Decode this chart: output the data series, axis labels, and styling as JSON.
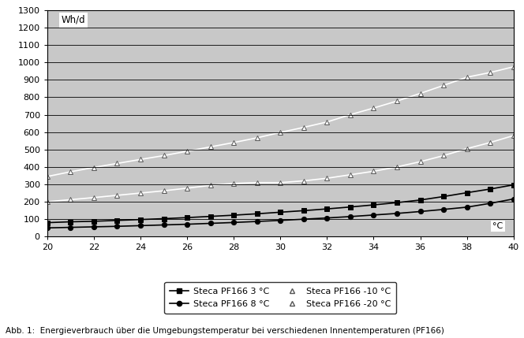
{
  "x": [
    20,
    21,
    22,
    23,
    24,
    25,
    26,
    27,
    28,
    29,
    30,
    31,
    32,
    33,
    34,
    35,
    36,
    37,
    38,
    39,
    40
  ],
  "series": [
    {
      "label": "Steca PF166 3 °C",
      "marker": "s",
      "linecolor": "#000000",
      "markerface": "#000000",
      "markedge": "#000000",
      "values": [
        80,
        85,
        88,
        93,
        98,
        103,
        109,
        116,
        123,
        131,
        140,
        149,
        159,
        170,
        182,
        195,
        210,
        230,
        252,
        273,
        297
      ]
    },
    {
      "label": "Steca PF166 8 °C",
      "marker": "o",
      "linecolor": "#000000",
      "markerface": "#000000",
      "markedge": "#000000",
      "values": [
        50,
        53,
        56,
        59,
        63,
        67,
        71,
        76,
        81,
        87,
        93,
        100,
        107,
        115,
        124,
        133,
        144,
        156,
        169,
        191,
        216
      ]
    },
    {
      "label": "Steca PF166 -10 °C",
      "marker": "^",
      "linecolor": "#ffffff",
      "markerface": "#ffffff",
      "markedge": "#555555",
      "values": [
        200,
        212,
        224,
        237,
        250,
        263,
        278,
        294,
        305,
        310,
        310,
        320,
        335,
        355,
        375,
        400,
        430,
        465,
        505,
        540,
        580
      ]
    },
    {
      "label": "Steca PF166 -20 °C",
      "marker": "^",
      "linecolor": "#ffffff",
      "markerface": "#ffffff",
      "markedge": "#555555",
      "values": [
        345,
        372,
        397,
        420,
        443,
        465,
        490,
        515,
        540,
        567,
        598,
        627,
        658,
        700,
        738,
        778,
        822,
        868,
        915,
        942,
        975
      ]
    }
  ],
  "xlim": [
    20,
    40
  ],
  "ylim": [
    0,
    1300
  ],
  "xticks": [
    20,
    22,
    24,
    26,
    28,
    30,
    32,
    34,
    36,
    38,
    40
  ],
  "yticks": [
    0,
    100,
    200,
    300,
    400,
    500,
    600,
    700,
    800,
    900,
    1000,
    1100,
    1200,
    1300
  ],
  "ylabel_text": "Wh/d",
  "xlabel_text": "°C",
  "plot_bg": "#c8c8c8",
  "fig_bg": "#ffffff",
  "grid_color": "#000000",
  "caption": "Abb. 1:  Energieverbrauch über die Umgebungstemperatur bei verschiedenen Innentemperaturen (PF166)",
  "legend_labels": [
    "Steca PF166 3 °C",
    "Steca PF166 8 °C",
    "Steca PF166 -10 °C",
    "Steca PF166 -20 °C"
  ]
}
